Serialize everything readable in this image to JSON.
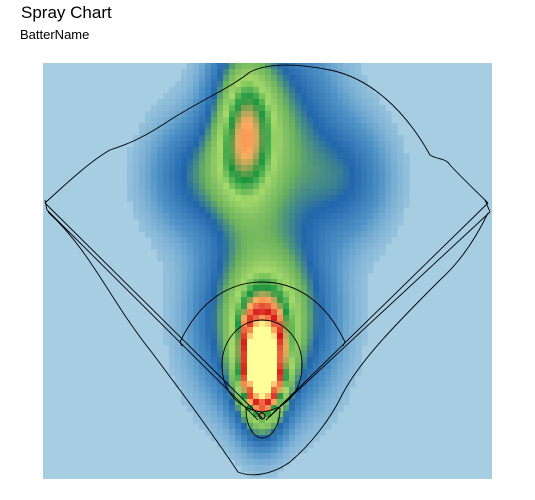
{
  "chart_data": {
    "type": "heatmap",
    "title": "Spray Chart",
    "subtitle": "BatterName",
    "xlabel": "",
    "ylabel": "",
    "grid": false,
    "legend": "none",
    "colors": {
      "background": "#a6cde2",
      "scale": [
        "#a6cde2",
        "#4f92c6",
        "#2166ac",
        "#6cb35e",
        "#a6d96a",
        "#1a9641",
        "#fdae61",
        "#d7191c",
        "#ffff99"
      ]
    },
    "density_hotspots": [
      {
        "name": "infield-peak",
        "x": 0.0,
        "y": 15,
        "weight": 1.0,
        "sx": 5,
        "sy": 12
      },
      {
        "name": "shallow-center",
        "x": 1.0,
        "y": 32,
        "weight": 0.55,
        "sx": 13,
        "sy": 18
      },
      {
        "name": "left-center-gap",
        "x": -6,
        "y": 96,
        "weight": 0.42,
        "sx": 7,
        "sy": 19
      },
      {
        "name": "center-field",
        "x": 5,
        "y": 92,
        "weight": 0.3,
        "sx": 13,
        "sy": 24
      },
      {
        "name": "left-field",
        "x": -21,
        "y": 80,
        "weight": 0.22,
        "sx": 11,
        "sy": 13
      },
      {
        "name": "right-field",
        "x": 28,
        "y": 79,
        "weight": 0.18,
        "sx": 10,
        "sy": 13
      }
    ]
  }
}
